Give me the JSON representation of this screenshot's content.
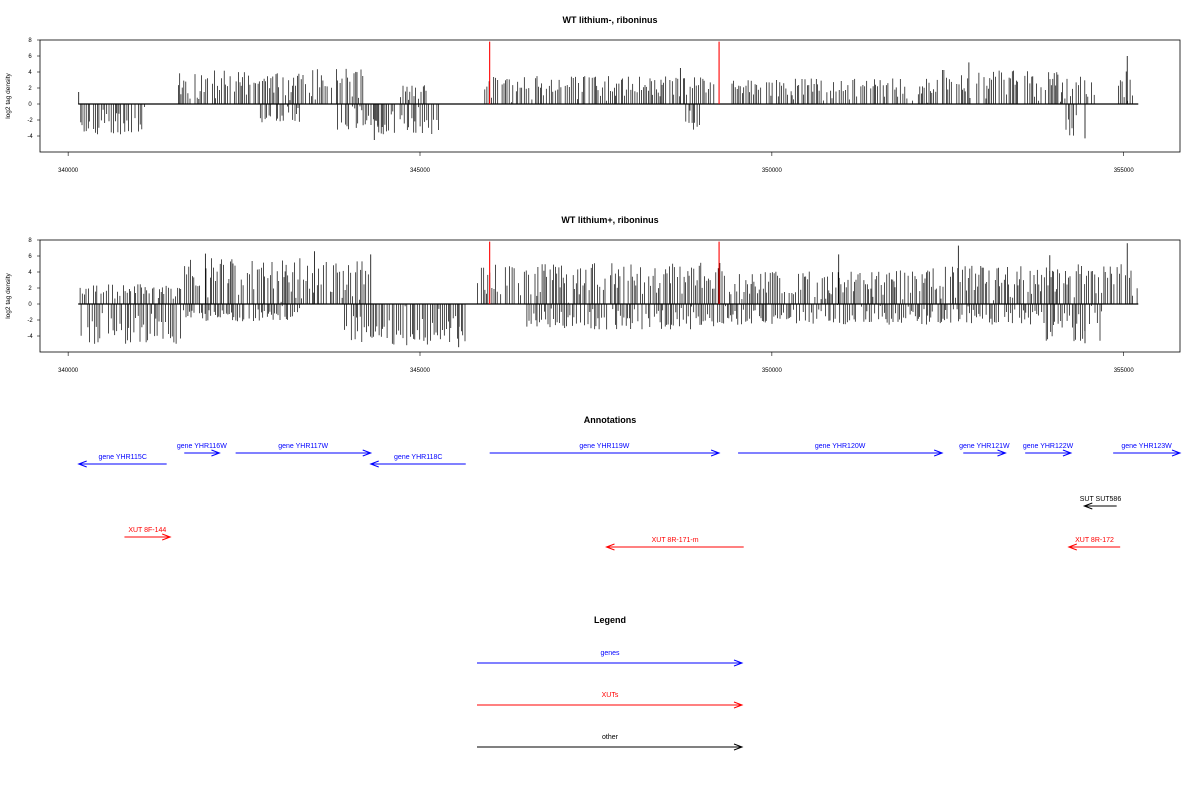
{
  "chart_data": [
    {
      "type": "bar",
      "title": "WT lithium-, riboninus",
      "ylabel": "log2 tag density",
      "xlim": [
        339600,
        355800
      ],
      "ylim": [
        -6,
        8
      ],
      "x_ticks": [
        340000,
        345000,
        350000,
        355000
      ],
      "y_ticks": [
        -4,
        -2,
        0,
        2,
        4,
        6,
        8
      ],
      "grid": false,
      "positive_regions": [
        {
          "start": 341550,
          "end": 343400,
          "max": 4.2
        },
        {
          "start": 343400,
          "end": 344200,
          "max": 4.5
        },
        {
          "start": 344700,
          "end": 345100,
          "max": 2.5
        },
        {
          "start": 345900,
          "end": 349200,
          "max": 3.5
        },
        {
          "start": 349400,
          "end": 352400,
          "max": 3.2
        },
        {
          "start": 352400,
          "end": 353900,
          "max": 4.3
        },
        {
          "start": 353900,
          "end": 354600,
          "max": 4.0
        },
        {
          "start": 354900,
          "end": 355200,
          "max": 4.2
        }
      ],
      "negative_regions": [
        {
          "start": 340150,
          "end": 341100,
          "min": -3.8
        },
        {
          "start": 342700,
          "end": 343300,
          "min": -2.3
        },
        {
          "start": 343800,
          "end": 344400,
          "min": -3.2
        },
        {
          "start": 344350,
          "end": 345300,
          "min": -3.8
        },
        {
          "start": 348750,
          "end": 349000,
          "min": -3.2
        },
        {
          "start": 354150,
          "end": 354350,
          "min": -4.2
        }
      ],
      "peaks": [
        {
          "x": 340150,
          "y": 1.5
        },
        {
          "x": 344350,
          "y": -4.5
        },
        {
          "x": 348700,
          "y": 4.5
        },
        {
          "x": 352800,
          "y": 5.2
        },
        {
          "x": 354450,
          "y": -4.3
        },
        {
          "x": 355050,
          "y": 6.0
        }
      ],
      "highlight_lines": [
        {
          "x": 345990,
          "y": 7.8,
          "color": "#ff0000"
        },
        {
          "x": 349250,
          "y": 7.8,
          "color": "#ff0000"
        }
      ],
      "seed": 11
    },
    {
      "type": "bar",
      "title": "WT lithium+, riboninus",
      "ylabel": "log2 tag density",
      "xlim": [
        339600,
        355800
      ],
      "ylim": [
        -6,
        8
      ],
      "x_ticks": [
        340000,
        345000,
        350000,
        355000
      ],
      "y_ticks": [
        -4,
        -2,
        0,
        2,
        4,
        6,
        8
      ],
      "grid": false,
      "positive_regions": [
        {
          "start": 340150,
          "end": 341600,
          "max": 2.5
        },
        {
          "start": 341600,
          "end": 343300,
          "max": 5.8
        },
        {
          "start": 343300,
          "end": 344300,
          "max": 5.5
        },
        {
          "start": 345800,
          "end": 349300,
          "max": 5.2
        },
        {
          "start": 349300,
          "end": 352200,
          "max": 4.2
        },
        {
          "start": 352200,
          "end": 353600,
          "max": 4.8
        },
        {
          "start": 353600,
          "end": 355200,
          "max": 5.0
        }
      ],
      "negative_regions": [
        {
          "start": 340150,
          "end": 341600,
          "min": -5.0
        },
        {
          "start": 341600,
          "end": 343300,
          "min": -2.2
        },
        {
          "start": 343900,
          "end": 344500,
          "min": -4.8
        },
        {
          "start": 344500,
          "end": 345650,
          "min": -5.3
        },
        {
          "start": 346500,
          "end": 349200,
          "min": -3.2
        },
        {
          "start": 349200,
          "end": 353800,
          "min": -2.6
        },
        {
          "start": 353800,
          "end": 354700,
          "min": -4.8
        }
      ],
      "peaks": [
        {
          "x": 341950,
          "y": 6.3
        },
        {
          "x": 343500,
          "y": 6.6
        },
        {
          "x": 344300,
          "y": 6.2
        },
        {
          "x": 350950,
          "y": 6.2
        },
        {
          "x": 352650,
          "y": 7.3
        },
        {
          "x": 353950,
          "y": 6.1
        },
        {
          "x": 355050,
          "y": 7.6
        },
        {
          "x": 345550,
          "y": -5.4
        },
        {
          "x": 354450,
          "y": -4.9
        }
      ],
      "highlight_lines": [
        {
          "x": 345990,
          "y": 7.8,
          "color": "#ff0000"
        },
        {
          "x": 349250,
          "y": 7.8,
          "color": "#ff0000"
        }
      ],
      "seed": 29
    }
  ],
  "annotations": {
    "title": "Annotations",
    "xlim": [
      339600,
      355800
    ],
    "features": [
      {
        "label": "gene YHR115C",
        "start": 340150,
        "end": 341400,
        "strand": "-",
        "color": "#0000ff",
        "row": 1
      },
      {
        "label": "gene YHR116W",
        "start": 341650,
        "end": 342150,
        "strand": "+",
        "color": "#0000ff",
        "row": 0
      },
      {
        "label": "gene YHR117W",
        "start": 342380,
        "end": 344300,
        "strand": "+",
        "color": "#0000ff",
        "row": 0
      },
      {
        "label": "gene YHR118C",
        "start": 344300,
        "end": 345650,
        "strand": "-",
        "color": "#0000ff",
        "row": 1
      },
      {
        "label": "gene YHR119W",
        "start": 345990,
        "end": 349250,
        "strand": "+",
        "color": "#0000ff",
        "row": 0
      },
      {
        "label": "gene YHR120W",
        "start": 349520,
        "end": 352420,
        "strand": "+",
        "color": "#0000ff",
        "row": 0
      },
      {
        "label": "gene YHR121W",
        "start": 352720,
        "end": 353320,
        "strand": "+",
        "color": "#0000ff",
        "row": 0
      },
      {
        "label": "gene YHR122W",
        "start": 353600,
        "end": 354250,
        "strand": "+",
        "color": "#0000ff",
        "row": 0
      },
      {
        "label": "gene YHR123W",
        "start": 354850,
        "end": 355800,
        "strand": "+",
        "color": "#0000ff",
        "row": 0
      },
      {
        "label": "SUT SUT586",
        "start": 354440,
        "end": 354900,
        "strand": "-",
        "color": "#000000",
        "row": 2
      },
      {
        "label": "XUT 8F-144",
        "start": 340800,
        "end": 341450,
        "strand": "+",
        "color": "#ff0000",
        "row": 3
      },
      {
        "label": "XUT 8R-171-m",
        "start": 347650,
        "end": 349600,
        "strand": "-",
        "color": "#ff0000",
        "row": 4
      },
      {
        "label": "XUT 8R-172",
        "start": 354220,
        "end": 354950,
        "strand": "-",
        "color": "#ff0000",
        "row": 4
      }
    ]
  },
  "legend": {
    "title": "Legend",
    "items": [
      {
        "label": "genes",
        "color": "#0000ff"
      },
      {
        "label": "XUTs",
        "color": "#ff0000"
      },
      {
        "label": "other",
        "color": "#000000"
      }
    ]
  }
}
